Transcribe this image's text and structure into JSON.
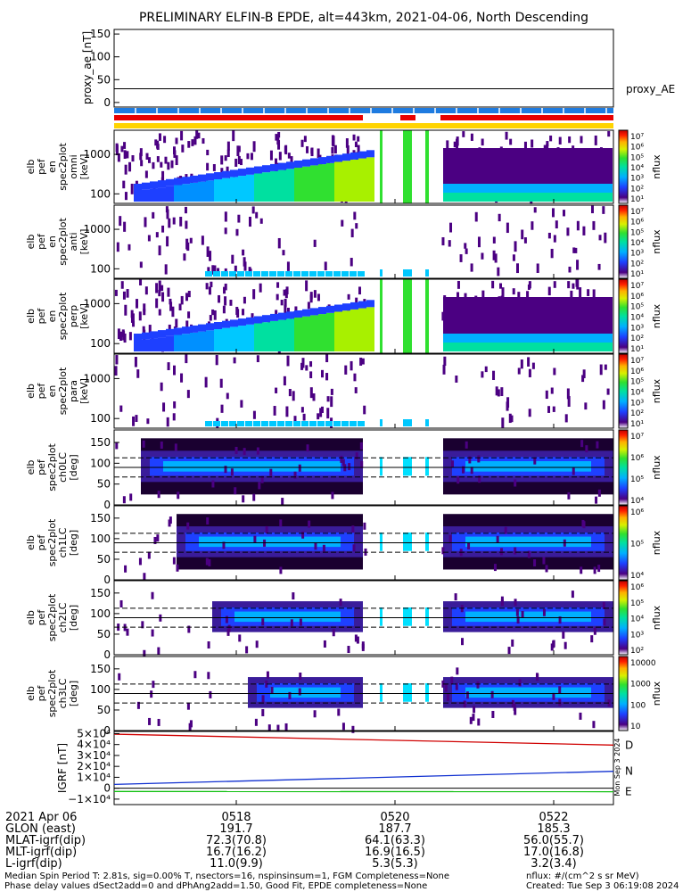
{
  "title": "PRELIMINARY ELFIN-B EPDE, alt=443km, 2021-04-06, North Descending",
  "colors": {
    "bar_blue": "#1e7be0",
    "bar_red": "#e80000",
    "bar_yellow": "#ffd400",
    "igrf_d": "#d00000",
    "igrf_n": "#1030d0",
    "igrf_e": "#10c010"
  },
  "chart_data": [
    {
      "type": "line",
      "id": "proxy_ae",
      "ylabel": "proxy_ae [nT]",
      "yticks": [
        "150",
        "100",
        "50",
        "0"
      ],
      "ylim": [
        -10,
        160
      ],
      "legend": "proxy_AE",
      "series": [
        {
          "name": "proxy_AE",
          "values": [
            30,
            30
          ]
        }
      ]
    },
    {
      "type": "heatmap",
      "id": "pef_en_omni",
      "ylabel": [
        "elb",
        "pef",
        "en",
        "spec2plot",
        "omni",
        "[keV]"
      ],
      "yticks": [
        "1000",
        "100"
      ],
      "scale": "log",
      "colorbar": {
        "label": "nflux",
        "ticks": [
          "10⁷",
          "10⁶",
          "10⁵",
          "10⁴",
          "10³",
          "10²",
          "10¹"
        ]
      }
    },
    {
      "type": "heatmap",
      "id": "pef_en_anti",
      "ylabel": [
        "elb",
        "pef",
        "en",
        "spec2plot",
        "anti",
        "[keV]"
      ],
      "yticks": [
        "1000",
        "100"
      ],
      "scale": "log",
      "colorbar": {
        "label": "nflux",
        "ticks": [
          "10⁷",
          "10⁶",
          "10⁵",
          "10⁴",
          "10³",
          "10²",
          "10¹"
        ]
      }
    },
    {
      "type": "heatmap",
      "id": "pef_en_perp",
      "ylabel": [
        "elb",
        "pef",
        "en",
        "spec2plot",
        "perp",
        "[keV]"
      ],
      "yticks": [
        "1000",
        "100"
      ],
      "scale": "log",
      "colorbar": {
        "label": "nflux",
        "ticks": [
          "10⁷",
          "10⁶",
          "10⁵",
          "10⁴",
          "10³",
          "10²",
          "10¹"
        ]
      }
    },
    {
      "type": "heatmap",
      "id": "pef_en_para",
      "ylabel": [
        "elb",
        "pef",
        "en",
        "spec2plot",
        "para",
        "[keV]"
      ],
      "yticks": [
        "1000",
        "100"
      ],
      "scale": "log",
      "colorbar": {
        "label": "nflux",
        "ticks": [
          "10⁷",
          "10⁶",
          "10⁵",
          "10⁴",
          "10³",
          "10²",
          "10¹"
        ]
      }
    },
    {
      "type": "heatmap",
      "id": "pef_ch0LC",
      "ylabel": [
        "elb",
        "pef",
        "spec2plot",
        "ch0LC",
        "[deg]"
      ],
      "yticks": [
        "150",
        "100",
        "50",
        "0"
      ],
      "colorbar": {
        "label": "nflux",
        "ticks": [
          "10⁷",
          "10⁶",
          "10⁵",
          "10⁴"
        ]
      }
    },
    {
      "type": "heatmap",
      "id": "pef_ch1LC",
      "ylabel": [
        "elb",
        "pef",
        "spec2plot",
        "ch1LC",
        "[deg]"
      ],
      "yticks": [
        "150",
        "100",
        "50",
        "0"
      ],
      "colorbar": {
        "label": "nflux",
        "ticks": [
          "10⁶",
          "10⁵",
          "10⁴"
        ]
      }
    },
    {
      "type": "heatmap",
      "id": "pef_ch2LC",
      "ylabel": [
        "elb",
        "pef",
        "spec2plot",
        "ch2LC",
        "[deg]"
      ],
      "yticks": [
        "150",
        "100",
        "50",
        "0"
      ],
      "colorbar": {
        "label": "nflux",
        "ticks": [
          "10⁶",
          "10⁵",
          "10⁴",
          "10³",
          "10²"
        ]
      }
    },
    {
      "type": "heatmap",
      "id": "pef_ch3LC",
      "ylabel": [
        "elb",
        "pef",
        "spec2plot",
        "ch3LC",
        "[deg]"
      ],
      "yticks": [
        "150",
        "100",
        "50",
        "0"
      ],
      "colorbar": {
        "label": "nflux",
        "ticks": [
          "10000",
          "1000",
          "100",
          "10"
        ]
      }
    },
    {
      "type": "line",
      "id": "igrf",
      "ylabel": "IGRF [nT]",
      "yticks": [
        "5×10⁴",
        "4×10⁴",
        "3×10⁴",
        "2×10⁴",
        "1×10⁴",
        "0",
        "−1×10⁴"
      ],
      "ylim": [
        -15000,
        52000
      ],
      "series": [
        {
          "name": "D",
          "values": [
            49500,
            39500
          ]
        },
        {
          "name": "N",
          "values": [
            3500,
            15500
          ]
        },
        {
          "name": "E",
          "values": [
            -3000,
            -3200
          ]
        }
      ],
      "side_label": "Mon Sep 3 2024"
    }
  ],
  "time_axis": {
    "ticks": [
      "0518",
      "0520",
      "0522"
    ],
    "rows": [
      {
        "label": "2021 Apr 06",
        "values": [
          "0518",
          "0520",
          "0522"
        ]
      },
      {
        "label": "GLON (east)",
        "values": [
          "191.7",
          "187.7",
          "185.3"
        ]
      },
      {
        "label": "MLAT-igrf(dip)",
        "values": [
          "72.3(70.8)",
          "64.1(63.3)",
          "56.0(55.7)"
        ]
      },
      {
        "label": "MLT-igrf(dip)",
        "values": [
          "16.7(16.2)",
          "16.9(16.5)",
          "17.0(16.8)"
        ]
      },
      {
        "label": "L-igrf(dip)",
        "values": [
          "11.0(9.9)",
          "5.3(5.3)",
          "3.2(3.4)"
        ]
      }
    ]
  },
  "footer": {
    "line1": "Median Spin Period T: 2.81s, sig=0.00% T, nsectors=16, nspinsinsum=1, FGM Completeness=None",
    "line2": "Phase delay values dSect2add=0 and dPhAng2add=1.50, Good Fit, EPDE completeness=None",
    "right1": "nflux: #/(cm^2 s sr MeV)",
    "right2": "Created: Tue Sep  3 06:19:08 2024"
  }
}
